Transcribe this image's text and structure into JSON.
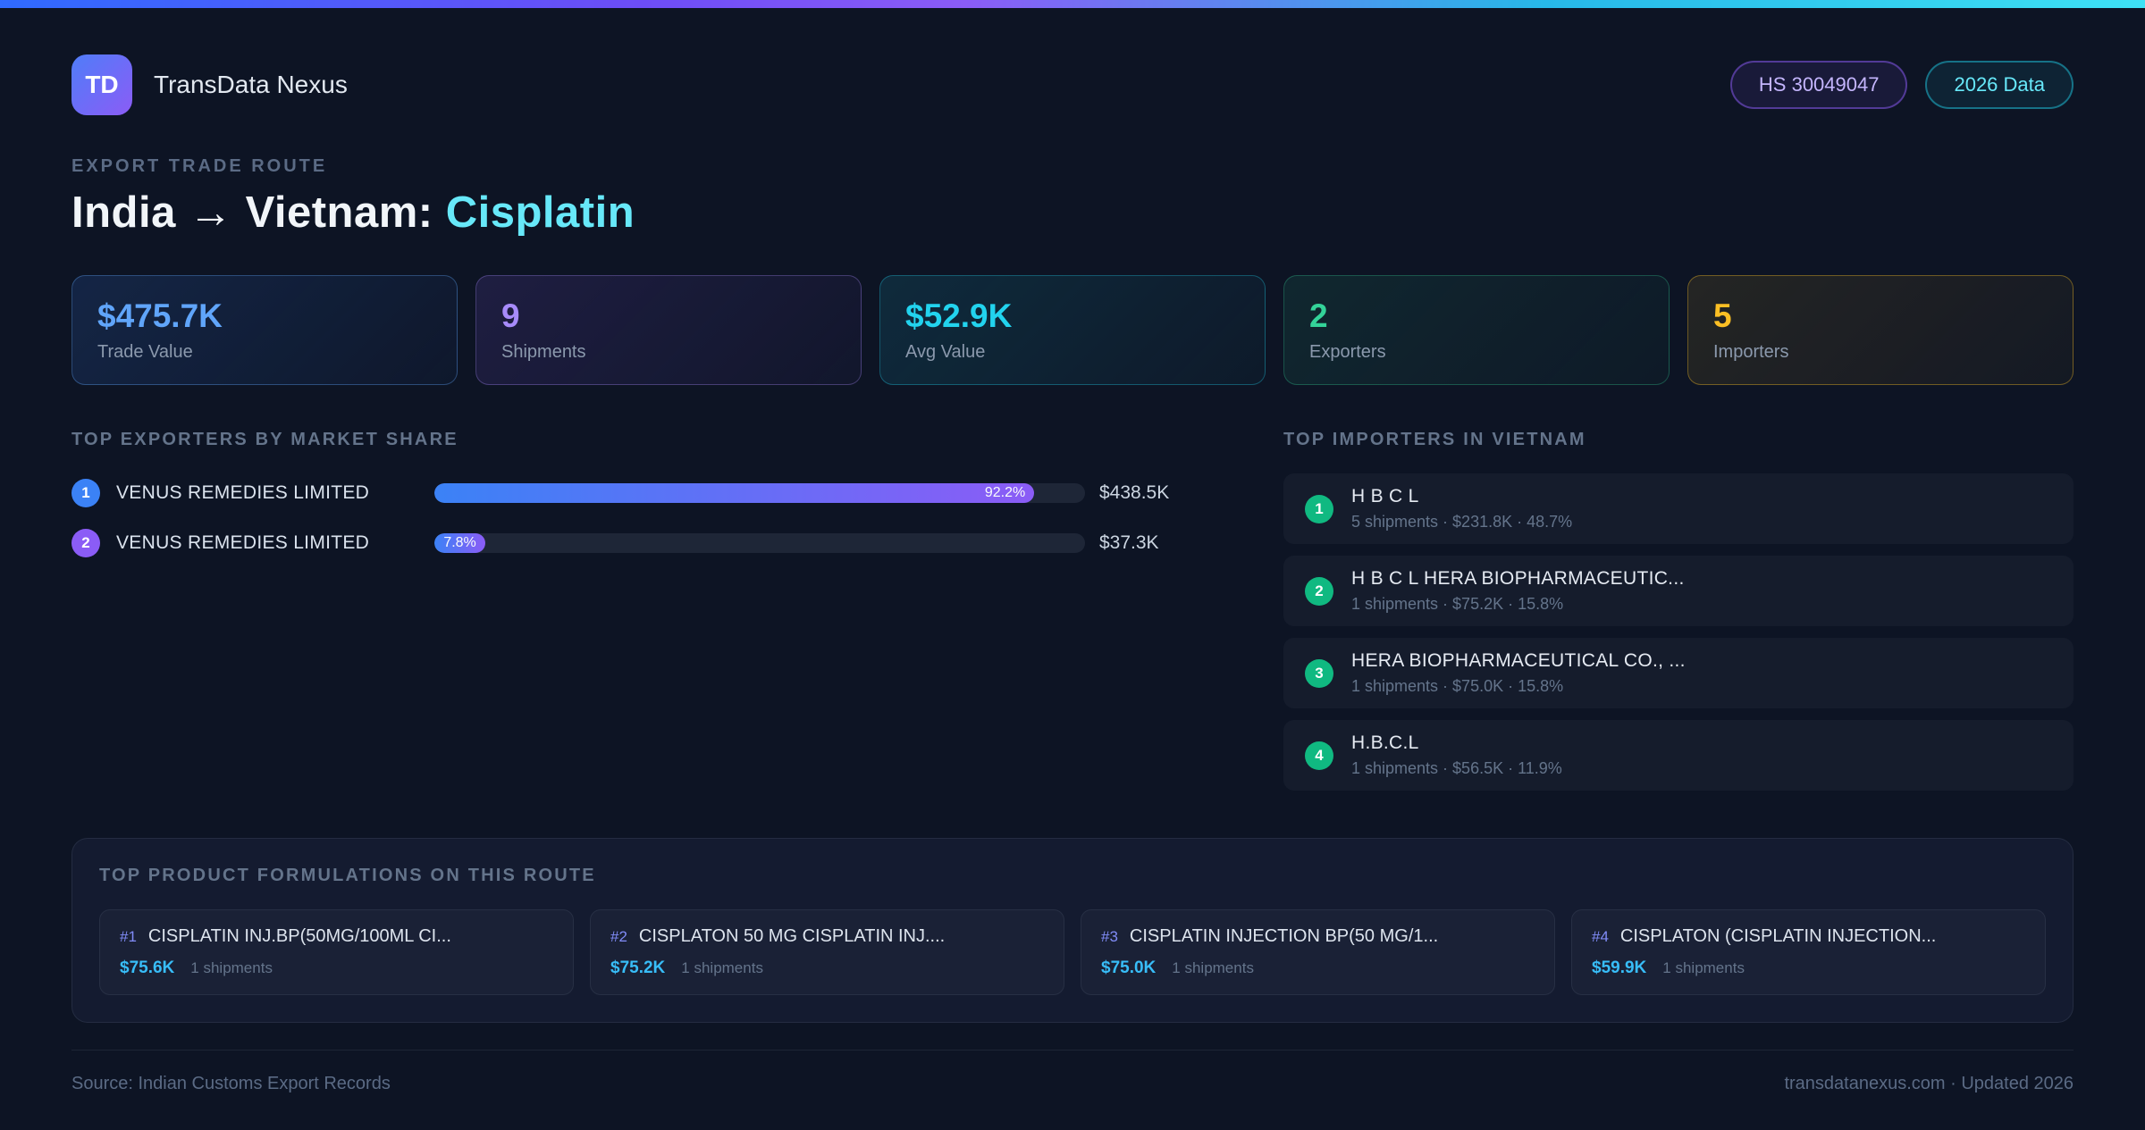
{
  "theme": {
    "accent_blue": "#60a5fa",
    "accent_purple": "#a78bfa",
    "accent_cyan": "#22d3ee",
    "accent_green": "#34d399",
    "accent_amber": "#fbbf24",
    "title_product_color": "#67e8f9",
    "bar_gradient_start": "#3b82f6",
    "bar_gradient_end": "#8b5cf6"
  },
  "header": {
    "logo_text": "TD",
    "app_name": "TransData Nexus",
    "badges": [
      {
        "label": "HS 30049047"
      },
      {
        "label": "2026 Data"
      }
    ]
  },
  "hero": {
    "eyebrow": "EXPORT TRADE ROUTE",
    "title_main": "India → Vietnam:",
    "title_accent": "Cisplatin"
  },
  "stats": {
    "cards": [
      {
        "value": "$475.7K",
        "label": "Trade Value",
        "accent": "#60a5fa"
      },
      {
        "value": "9",
        "label": "Shipments",
        "accent": "#a78bfa"
      },
      {
        "value": "$52.9K",
        "label": "Avg Value",
        "accent": "#22d3ee"
      },
      {
        "value": "2",
        "label": "Exporters",
        "accent": "#34d399"
      },
      {
        "value": "5",
        "label": "Importers",
        "accent": "#fbbf24"
      }
    ]
  },
  "exporters": {
    "heading": "TOP EXPORTERS BY MARKET SHARE",
    "rows": [
      {
        "rank": "1",
        "name": "VENUS REMEDIES LIMITED",
        "share_pct": "92.2%",
        "bar_width": "92.2%",
        "value": "$438.5K"
      },
      {
        "rank": "2",
        "name": "VENUS REMEDIES LIMITED",
        "share_pct": "7.8%",
        "bar_width": "7.8%",
        "value": "$37.3K"
      }
    ]
  },
  "importers": {
    "heading": "TOP IMPORTERS IN VIETNAM",
    "rows": [
      {
        "rank": "1",
        "name": "H B C L",
        "meta": "5 shipments · $231.8K · 48.7%"
      },
      {
        "rank": "2",
        "name": "H B C L HERA BIOPHARMACEUTIC...",
        "meta": "1 shipments · $75.2K · 15.8%"
      },
      {
        "rank": "3",
        "name": "HERA BIOPHARMACEUTICAL CO., ...",
        "meta": "1 shipments · $75.0K · 15.8%"
      },
      {
        "rank": "4",
        "name": "H.B.C.L",
        "meta": "1 shipments · $56.5K · 11.9%"
      }
    ]
  },
  "formulations": {
    "heading": "TOP PRODUCT FORMULATIONS ON THIS ROUTE",
    "cards": [
      {
        "rank": "#1",
        "name": "CISPLATIN INJ.BP(50MG/100ML CI...",
        "value": "$75.6K",
        "shipments": "1 shipments"
      },
      {
        "rank": "#2",
        "name": "CISPLATON 50 MG CISPLATIN INJ....",
        "value": "$75.2K",
        "shipments": "1 shipments"
      },
      {
        "rank": "#3",
        "name": "CISPLATIN INJECTION BP(50 MG/1...",
        "value": "$75.0K",
        "shipments": "1 shipments"
      },
      {
        "rank": "#4",
        "name": "CISPLATON (CISPLATIN INJECTION...",
        "value": "$59.9K",
        "shipments": "1 shipments"
      }
    ]
  },
  "footer": {
    "source": "Source: Indian Customs Export Records",
    "site": "transdatanexus.com · Updated 2026"
  }
}
